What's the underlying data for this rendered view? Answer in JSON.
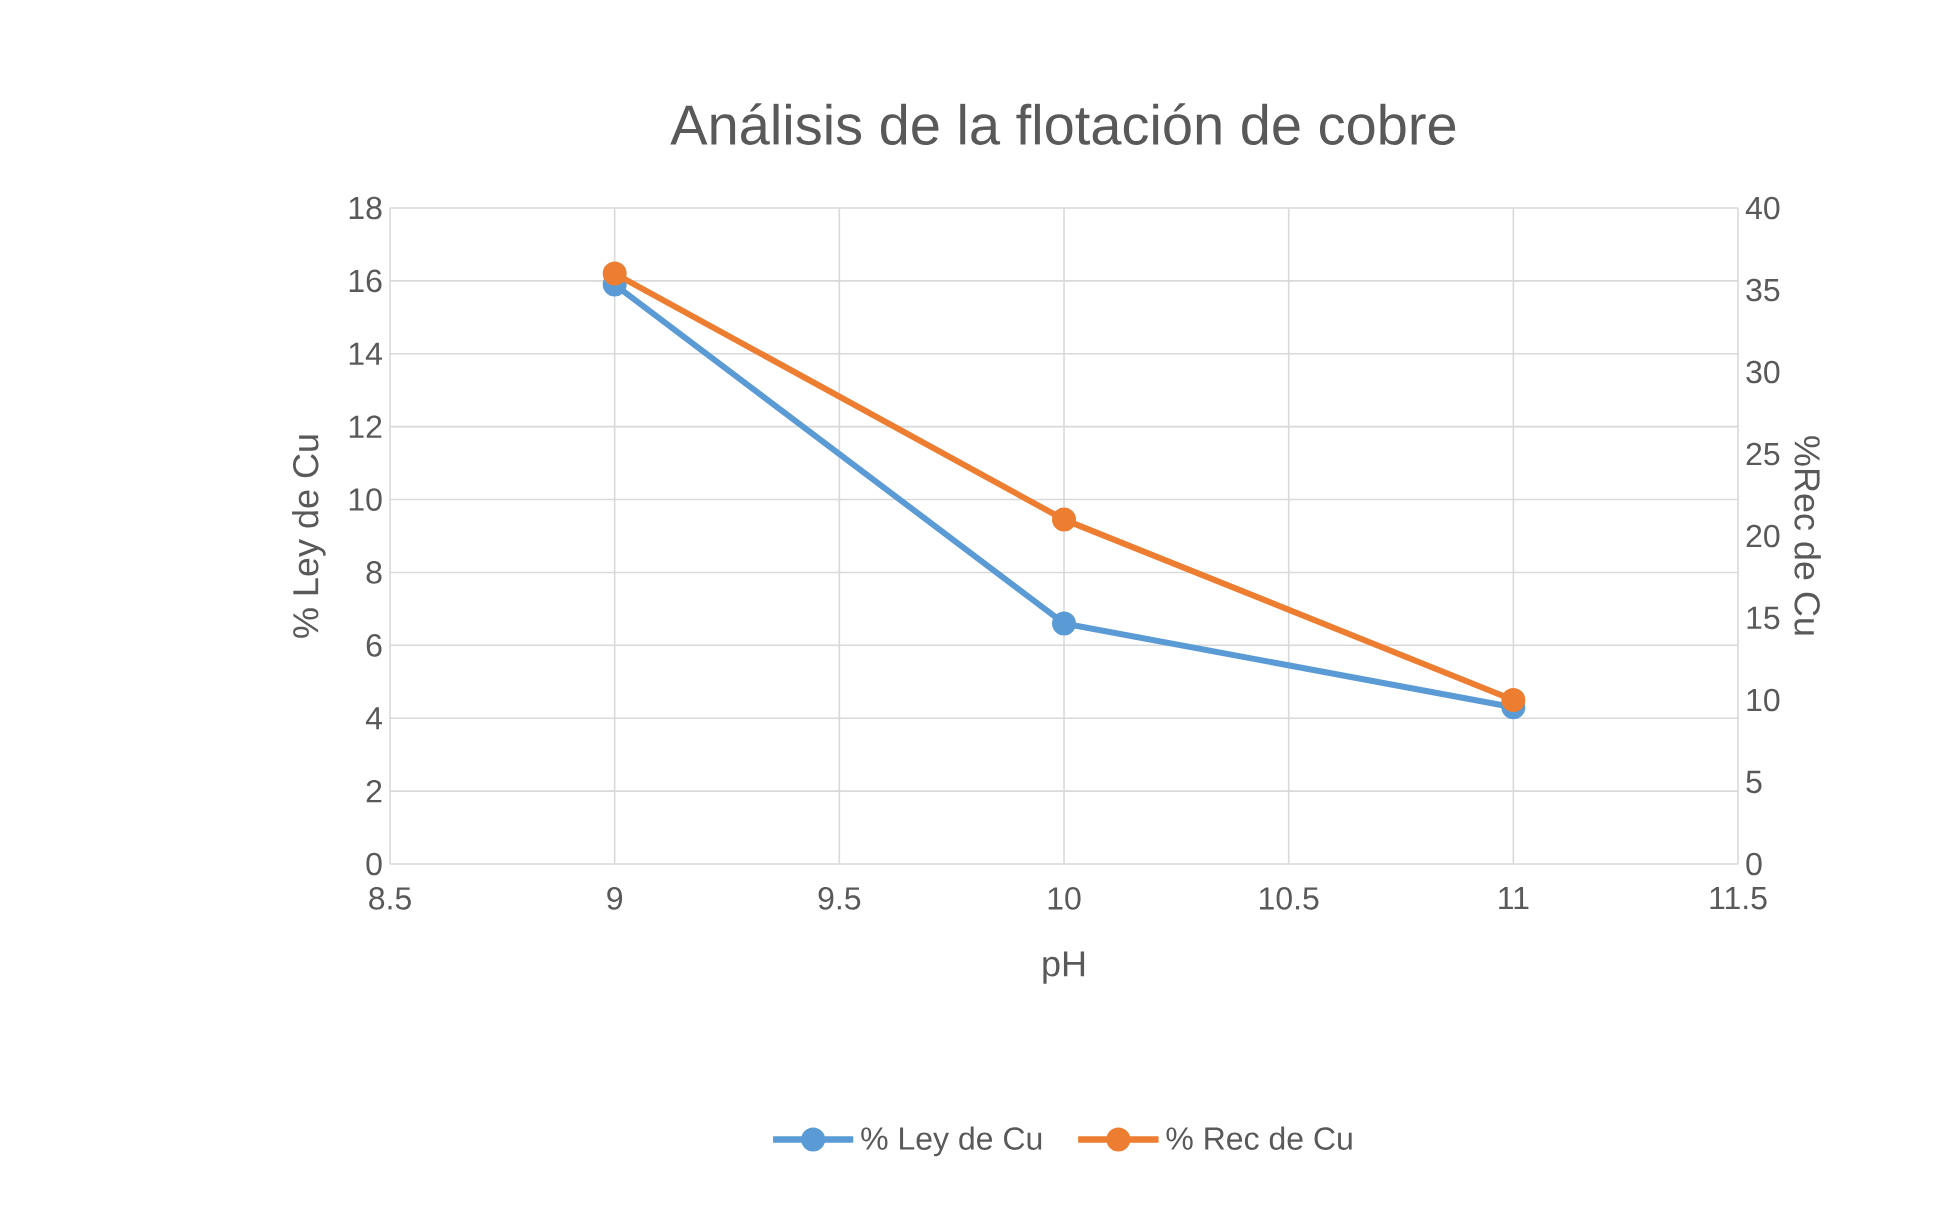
{
  "chart_data": {
    "type": "line",
    "title": "Análisis de la flotación de cobre",
    "xlabel": "pH",
    "ylabel": "% Ley  de Cu",
    "y2label": "%Rec de Cu",
    "series": [
      {
        "name": "% Ley de Cu",
        "color": "#5b9bd5",
        "x": [
          9,
          10,
          11
        ],
        "values": [
          15.9,
          6.6,
          4.3
        ]
      },
      {
        "name": "% Rec de Cu",
        "color": "#ed7d31",
        "x": [
          9,
          10,
          11
        ],
        "values": [
          36,
          21,
          10
        ],
        "axis": "y2"
      }
    ],
    "xlim": [
      8.5,
      11.5
    ],
    "xticks": [
      8.5,
      9,
      9.5,
      10,
      10.5,
      11,
      11.5
    ],
    "ylim": [
      0,
      18
    ],
    "yticks": [
      0,
      2,
      4,
      6,
      8,
      10,
      12,
      14,
      16,
      18
    ],
    "y2lim": [
      0,
      40
    ],
    "y2ticks": [
      0,
      5,
      10,
      15,
      20,
      25,
      30,
      35,
      40
    ],
    "grid": true,
    "legend": "bottom",
    "marker": "circle",
    "line_style": "solid"
  }
}
